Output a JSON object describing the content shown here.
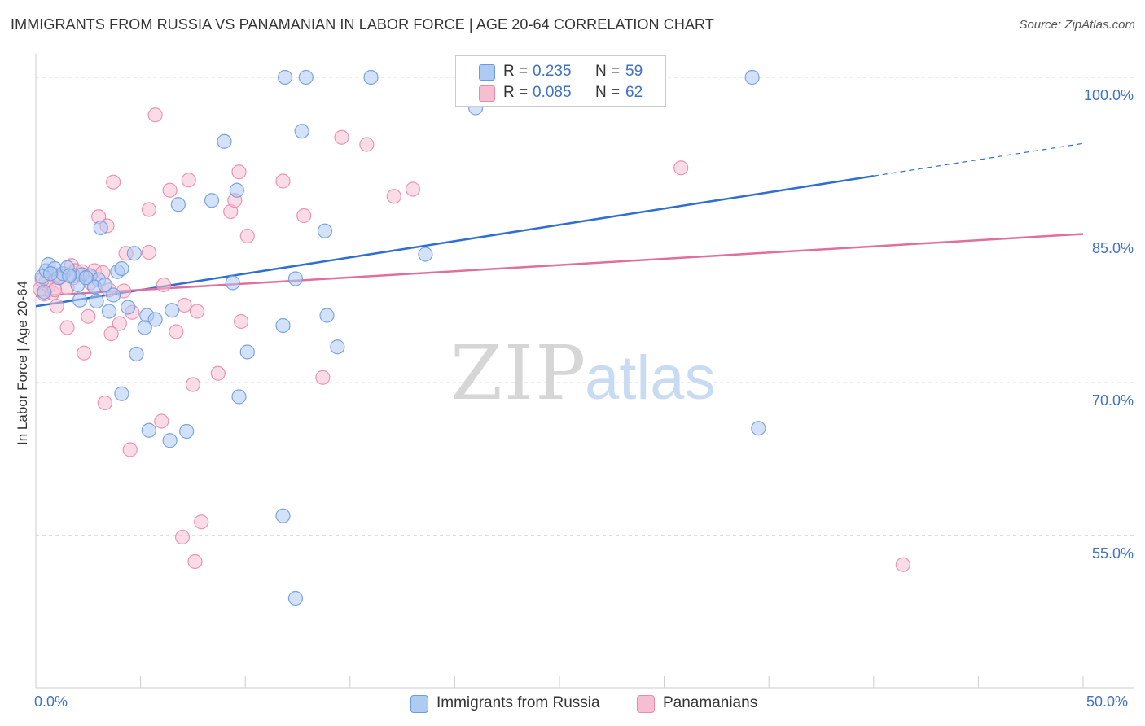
{
  "header": {
    "title": "IMMIGRANTS FROM RUSSIA VS PANAMANIAN IN LABOR FORCE | AGE 20-64 CORRELATION CHART",
    "source": "Source: ZipAtlas.com"
  },
  "watermark": {
    "zip": "ZIP",
    "atlas": "atlas"
  },
  "legend": {
    "rows": [
      {
        "r_label": "R =",
        "r_value": "0.235",
        "n_label": "N =",
        "n_value": "59"
      },
      {
        "r_label": "R =",
        "r_value": "0.085",
        "n_label": "N =",
        "n_value": "62"
      }
    ]
  },
  "bottom_legend": {
    "items": [
      {
        "label": "Immigrants from Russia"
      },
      {
        "label": "Panamanians"
      }
    ]
  },
  "colors": {
    "series1_fill": "#aecbf2",
    "series1_stroke": "#6b9be0",
    "series1_line": "#2f6fd1",
    "series2_fill": "#f6bfd1",
    "series2_stroke": "#e98aad",
    "series2_line": "#e06f9b",
    "tick_text": "#3f72c5",
    "grid": "#dddddd"
  },
  "chart_data": {
    "type": "scatter",
    "xlabel": "",
    "ylabel": "In Labor Force | Age 20-64",
    "xlim": [
      0,
      50
    ],
    "ylim": [
      40,
      102
    ],
    "x_tick_labels": [
      "0.0%",
      "50.0%"
    ],
    "y_ticks": [
      55,
      70,
      85,
      100
    ],
    "y_tick_labels": [
      "55.0%",
      "70.0%",
      "85.0%",
      "100.0%"
    ],
    "grid": true,
    "legend_placement": "top-center",
    "series": [
      {
        "name": "Immigrants from Russia",
        "trend": {
          "x": [
            0,
            40,
            50
          ],
          "y": [
            77.5,
            90.3,
            93.5
          ],
          "dashed_from": 40
        },
        "points": [
          [
            0.3,
            80.4
          ],
          [
            0.5,
            81.0
          ],
          [
            0.6,
            81.6
          ],
          [
            0.9,
            81.2
          ],
          [
            0.4,
            78.9
          ],
          [
            1.1,
            80.3
          ],
          [
            1.3,
            80.7
          ],
          [
            1.5,
            81.3
          ],
          [
            1.8,
            80.5
          ],
          [
            2.2,
            80.6
          ],
          [
            2.6,
            80.5
          ],
          [
            3.0,
            80.1
          ],
          [
            2.0,
            79.6
          ],
          [
            2.8,
            79.4
          ],
          [
            3.3,
            79.6
          ],
          [
            3.9,
            80.9
          ],
          [
            4.1,
            81.2
          ],
          [
            3.7,
            78.6
          ],
          [
            2.1,
            78.1
          ],
          [
            2.9,
            78.0
          ],
          [
            3.5,
            77.0
          ],
          [
            4.4,
            77.4
          ],
          [
            5.3,
            76.6
          ],
          [
            5.7,
            76.2
          ],
          [
            6.5,
            77.1
          ],
          [
            5.2,
            75.4
          ],
          [
            3.1,
            85.2
          ],
          [
            4.7,
            82.7
          ],
          [
            4.8,
            72.8
          ],
          [
            4.1,
            68.9
          ],
          [
            5.4,
            65.3
          ],
          [
            6.4,
            64.3
          ],
          [
            7.2,
            65.2
          ],
          [
            6.8,
            87.5
          ],
          [
            8.4,
            87.9
          ],
          [
            9.0,
            93.7
          ],
          [
            9.6,
            88.9
          ],
          [
            9.4,
            79.8
          ],
          [
            10.1,
            73.0
          ],
          [
            9.7,
            68.6
          ],
          [
            11.9,
            100.0
          ],
          [
            12.9,
            100.0
          ],
          [
            12.7,
            94.7
          ],
          [
            12.4,
            80.2
          ],
          [
            11.8,
            75.6
          ],
          [
            13.8,
            84.9
          ],
          [
            13.9,
            76.6
          ],
          [
            14.4,
            73.5
          ],
          [
            11.8,
            56.9
          ],
          [
            12.4,
            48.8
          ],
          [
            16.0,
            100.0
          ],
          [
            18.6,
            82.6
          ],
          [
            21.0,
            97.0
          ],
          [
            27.2,
            100.0
          ],
          [
            34.2,
            100.0
          ],
          [
            34.5,
            65.5
          ],
          [
            0.7,
            80.7
          ],
          [
            1.6,
            80.5
          ],
          [
            2.4,
            80.3
          ]
        ]
      },
      {
        "name": "Panamanians",
        "trend": {
          "x": [
            0,
            50
          ],
          "y": [
            78.5,
            84.6
          ]
        },
        "points": [
          [
            0.2,
            79.2
          ],
          [
            0.4,
            78.7
          ],
          [
            0.6,
            79.5
          ],
          [
            0.8,
            78.8
          ],
          [
            1.0,
            80.6
          ],
          [
            1.2,
            80.4
          ],
          [
            1.5,
            79.3
          ],
          [
            1.7,
            81.5
          ],
          [
            1.9,
            81.0
          ],
          [
            2.2,
            80.9
          ],
          [
            2.5,
            80.5
          ],
          [
            2.8,
            81.0
          ],
          [
            3.2,
            80.8
          ],
          [
            0.5,
            80.0
          ],
          [
            1.0,
            77.5
          ],
          [
            1.5,
            75.4
          ],
          [
            2.5,
            76.5
          ],
          [
            3.5,
            79.1
          ],
          [
            4.2,
            79.0
          ],
          [
            4.6,
            76.9
          ],
          [
            4.0,
            75.8
          ],
          [
            3.6,
            74.8
          ],
          [
            2.3,
            72.9
          ],
          [
            3.3,
            68.0
          ],
          [
            4.5,
            63.4
          ],
          [
            3.0,
            86.3
          ],
          [
            3.4,
            85.4
          ],
          [
            3.7,
            89.7
          ],
          [
            4.3,
            82.7
          ],
          [
            5.4,
            87.0
          ],
          [
            5.4,
            82.8
          ],
          [
            5.7,
            96.3
          ],
          [
            6.1,
            79.6
          ],
          [
            6.4,
            88.9
          ],
          [
            6.7,
            75.0
          ],
          [
            7.1,
            77.6
          ],
          [
            7.3,
            89.9
          ],
          [
            7.5,
            69.8
          ],
          [
            7.7,
            77.0
          ],
          [
            8.7,
            70.9
          ],
          [
            9.3,
            86.8
          ],
          [
            9.5,
            87.9
          ],
          [
            9.7,
            90.7
          ],
          [
            9.8,
            76.0
          ],
          [
            10.1,
            84.4
          ],
          [
            11.8,
            89.8
          ],
          [
            12.8,
            86.4
          ],
          [
            13.7,
            70.5
          ],
          [
            14.6,
            94.1
          ],
          [
            15.8,
            93.4
          ],
          [
            17.1,
            88.3
          ],
          [
            18.0,
            89.0
          ],
          [
            6.0,
            66.2
          ],
          [
            7.0,
            54.8
          ],
          [
            7.6,
            52.4
          ],
          [
            7.9,
            56.3
          ],
          [
            30.8,
            91.1
          ],
          [
            41.4,
            52.1
          ],
          [
            0.9,
            79.1
          ],
          [
            1.8,
            80.3
          ],
          [
            2.6,
            79.8
          ],
          [
            0.3,
            80.1
          ]
        ]
      }
    ]
  }
}
